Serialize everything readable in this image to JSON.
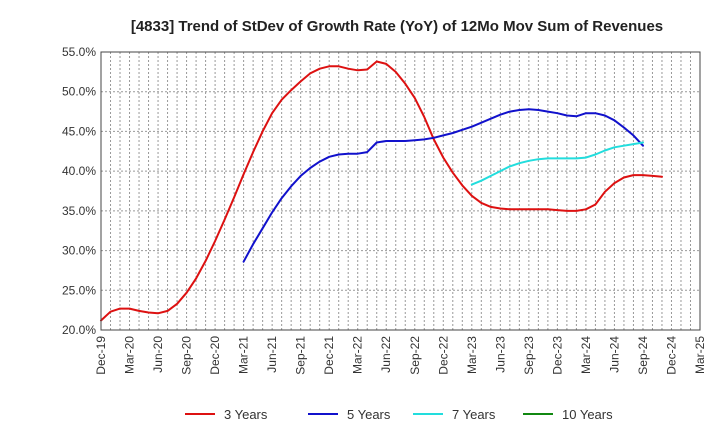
{
  "chart_data": {
    "type": "line",
    "title": "[4833]  Trend of StDev of Growth Rate (YoY) of 12Mo Mov Sum of Revenues",
    "xlabel": "",
    "ylabel": "",
    "ylim": [
      20.0,
      55.0
    ],
    "yticks": [
      "55.0%",
      "50.0%",
      "45.0%",
      "40.0%",
      "35.0%",
      "30.0%",
      "25.0%",
      "20.0%"
    ],
    "ytick_values": [
      55,
      50,
      45,
      40,
      35,
      30,
      25,
      20
    ],
    "xticks": [
      "Dec-19",
      "Mar-20",
      "Jun-20",
      "Sep-20",
      "Dec-20",
      "Mar-21",
      "Jun-21",
      "Sep-21",
      "Dec-21",
      "Mar-22",
      "Jun-22",
      "Sep-22",
      "Dec-22",
      "Mar-23",
      "Jun-23",
      "Sep-23",
      "Dec-23",
      "Mar-24",
      "Jun-24",
      "Sep-24",
      "Dec-24",
      "Mar-25"
    ],
    "x_start": "Dec-19",
    "x_unit": "months since Dec-19",
    "grid": true,
    "legend_position": "bottom",
    "series": [
      {
        "name": "3 Years",
        "color": "#dd1111",
        "x": [
          0,
          1,
          2,
          3,
          4,
          5,
          6,
          7,
          8,
          9,
          10,
          11,
          12,
          13,
          14,
          15,
          16,
          17,
          18,
          19,
          20,
          21,
          22,
          23,
          24,
          25,
          26,
          27,
          28,
          29,
          30,
          31,
          32,
          33,
          34,
          35,
          36,
          37,
          38,
          39,
          40,
          41,
          42,
          43,
          44,
          45,
          46,
          47,
          48,
          49,
          50,
          51,
          52,
          53,
          54,
          55,
          56,
          57,
          58,
          59,
          60
        ],
        "values": [
          21.2,
          22.3,
          22.7,
          22.7,
          22.4,
          22.2,
          22.1,
          22.4,
          23.3,
          24.7,
          26.5,
          28.7,
          31.2,
          33.9,
          36.7,
          39.6,
          42.4,
          45.0,
          47.3,
          49.0,
          50.2,
          51.3,
          52.3,
          52.9,
          53.2,
          53.2,
          52.9,
          52.7,
          52.8,
          53.8,
          53.5,
          52.5,
          51.0,
          49.2,
          46.8,
          44.0,
          41.7,
          39.8,
          38.2,
          36.9,
          36.0,
          35.5,
          35.3,
          35.2,
          35.2,
          35.2,
          35.2,
          35.2,
          35.1,
          35.0,
          35.0,
          35.2,
          35.8,
          37.4,
          38.5,
          39.2,
          39.5,
          39.5,
          39.4,
          39.3,
          null
        ]
      },
      {
        "name": "5 Years",
        "color": "#1111cc",
        "x": [
          15,
          16,
          17,
          18,
          19,
          20,
          21,
          22,
          23,
          24,
          25,
          26,
          27,
          28,
          29,
          30,
          31,
          32,
          33,
          34,
          35,
          36,
          37,
          38,
          39,
          40,
          41,
          42,
          43,
          44,
          45,
          46,
          47,
          48,
          49,
          50,
          51,
          52,
          53,
          54,
          55,
          56,
          57,
          58,
          59,
          60
        ],
        "values": [
          28.6,
          30.8,
          32.8,
          34.8,
          36.6,
          38.1,
          39.4,
          40.4,
          41.2,
          41.8,
          42.1,
          42.2,
          42.2,
          42.4,
          43.6,
          43.8,
          43.8,
          43.8,
          43.9,
          44.0,
          44.2,
          44.5,
          44.8,
          45.2,
          45.6,
          46.1,
          46.6,
          47.1,
          47.5,
          47.7,
          47.8,
          47.7,
          47.5,
          47.3,
          47.0,
          46.9,
          47.3,
          47.3,
          47.0,
          46.4,
          45.5,
          44.5,
          43.2,
          null,
          null,
          null
        ]
      },
      {
        "name": "7 Years",
        "color": "#22dddd",
        "x": [
          39,
          40,
          41,
          42,
          43,
          44,
          45,
          46,
          47,
          48,
          49,
          50,
          51,
          52,
          53,
          54,
          55,
          56,
          57,
          58,
          59,
          60
        ],
        "values": [
          38.3,
          38.8,
          39.4,
          40.0,
          40.6,
          41.0,
          41.3,
          41.5,
          41.6,
          41.6,
          41.6,
          41.6,
          41.7,
          42.1,
          42.6,
          43.0,
          43.2,
          43.4,
          43.6,
          null,
          null,
          null
        ]
      },
      {
        "name": "10 Years",
        "color": "#118811",
        "x": [],
        "values": []
      }
    ]
  }
}
